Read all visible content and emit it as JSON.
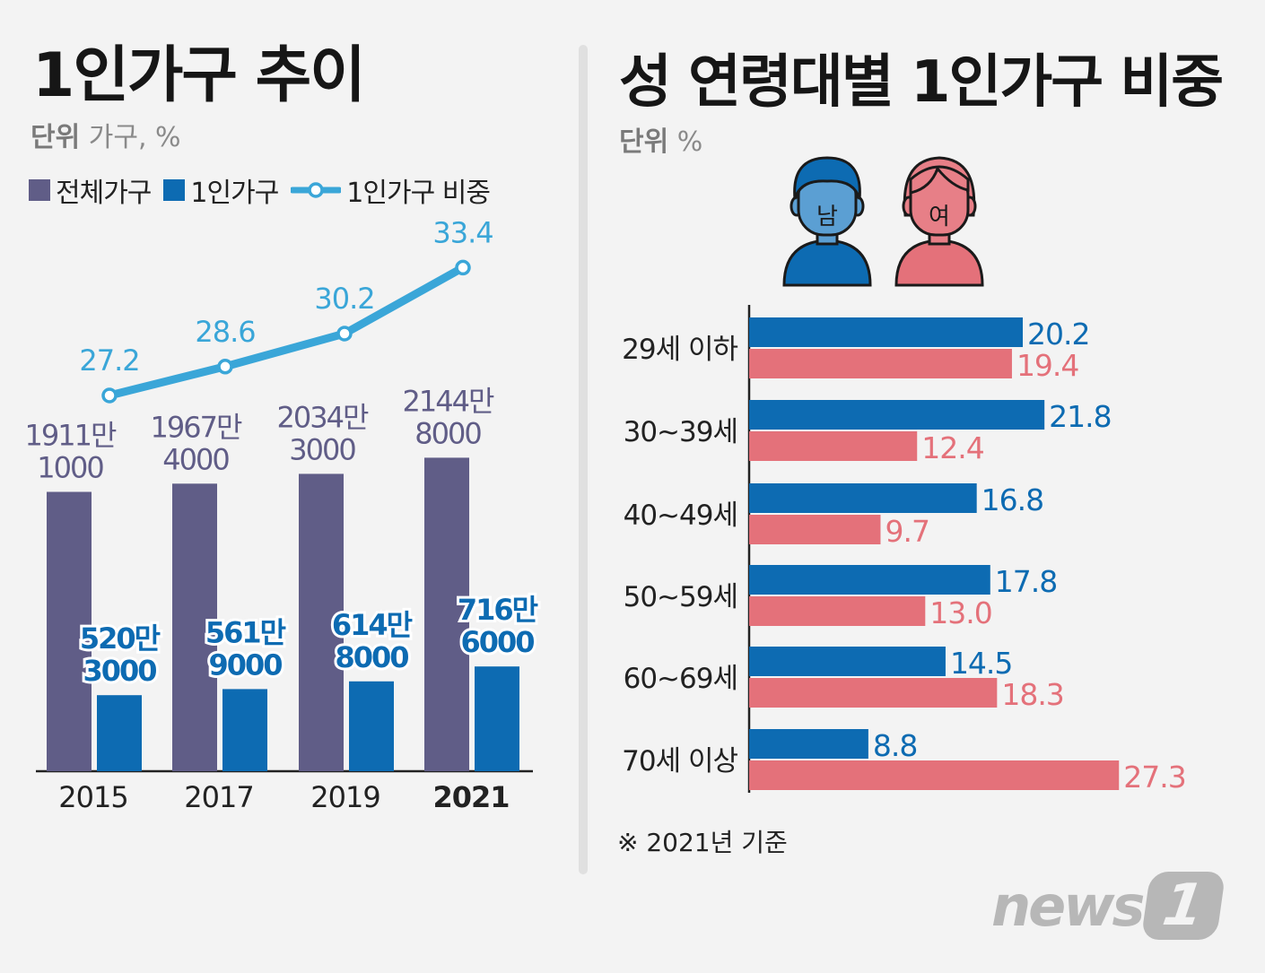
{
  "left_title": "1인가구 추이",
  "left_unit_label": "단위",
  "left_unit_value": "가구, %",
  "right_title": "성 연령대별 1인가구 비중",
  "right_unit_label": "단위",
  "right_unit_value": "%",
  "note": "※ 2021년 기준",
  "logo": {
    "text": "news",
    "mark": "1"
  },
  "colors": {
    "total": "#605d87",
    "single": "#0d6bb2",
    "line": "#3aa6d8",
    "male": "#0d6bb2",
    "female": "#e4717a",
    "male_face": "#5b9fd3",
    "female_face": "#e77f87"
  },
  "chart_data": [
    {
      "type": "bar",
      "title": "1인가구 추이",
      "unit": "가구, %",
      "categories": [
        "2015",
        "2017",
        "2019",
        "2021"
      ],
      "highlight_category": "2021",
      "legend": [
        "전체가구",
        "1인가구",
        "1인가구 비중"
      ],
      "series": [
        {
          "name": "전체가구",
          "values": [
            19111000,
            19674000,
            20343000,
            21448000
          ],
          "labels": [
            [
              "1911만",
              "1000"
            ],
            [
              "1967만",
              "4000"
            ],
            [
              "2034만",
              "3000"
            ],
            [
              "2144만",
              "8000"
            ]
          ]
        },
        {
          "name": "1인가구",
          "values": [
            5203000,
            5619000,
            6148000,
            7166000
          ],
          "labels": [
            [
              "520만",
              "3000"
            ],
            [
              "561만",
              "9000"
            ],
            [
              "614만",
              "8000"
            ],
            [
              "716만",
              "6000"
            ]
          ]
        },
        {
          "name": "1인가구 비중",
          "type": "line",
          "values": [
            27.2,
            28.6,
            30.2,
            33.4
          ],
          "labels": [
            "27.2",
            "28.6",
            "30.2",
            "33.4"
          ]
        }
      ]
    },
    {
      "type": "bar",
      "orientation": "horizontal",
      "title": "성 연령대별 1인가구 비중",
      "unit": "%",
      "categories": [
        "29세 이하",
        "30~39세",
        "40~49세",
        "50~59세",
        "60~69세",
        "70세 이상"
      ],
      "gender_labels": {
        "male": "남",
        "female": "여"
      },
      "series": [
        {
          "name": "남",
          "values": [
            20.2,
            21.8,
            16.8,
            17.8,
            14.5,
            8.8
          ],
          "labels": [
            "20.2",
            "21.8",
            "16.8",
            "17.8",
            "14.5",
            "8.8"
          ]
        },
        {
          "name": "여",
          "values": [
            19.4,
            12.4,
            9.7,
            13.0,
            18.3,
            27.3
          ],
          "labels": [
            "19.4",
            "12.4",
            "9.7",
            "13.0",
            "18.3",
            "27.3"
          ]
        }
      ]
    }
  ]
}
